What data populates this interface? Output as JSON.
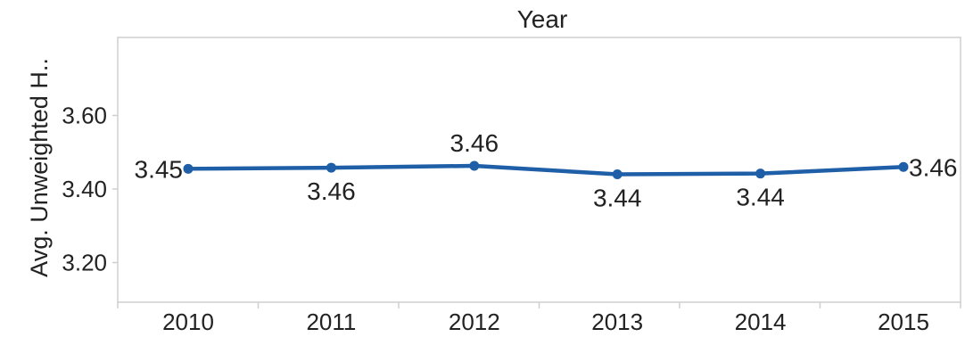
{
  "chart_data": {
    "type": "line",
    "title": "Year",
    "xlabel": "",
    "ylabel": "Avg. Unweighted H..",
    "categories": [
      "2010",
      "2011",
      "2012",
      "2013",
      "2014",
      "2015"
    ],
    "series": [
      {
        "values": [
          3.455,
          3.458,
          3.463,
          3.44,
          3.442,
          3.46
        ],
        "labels": [
          "3.45",
          "3.46",
          "3.46",
          "3.44",
          "3.44",
          "3.46"
        ],
        "label_side": [
          "left",
          "below",
          "above",
          "below",
          "below",
          "right"
        ]
      }
    ],
    "y_ticks": [
      "3.20",
      "3.40",
      "3.60"
    ],
    "ylim": [
      3.1,
      3.8
    ],
    "grid": false,
    "legend": "none",
    "colors": {
      "line": "#1f5fa8",
      "frame": "#cfcfcf",
      "text": "#222222"
    }
  }
}
